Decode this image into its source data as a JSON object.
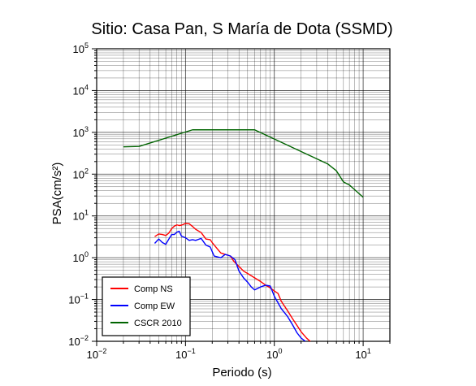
{
  "chart_data": {
    "type": "line",
    "title": "Sitio: Casa Pan, S María de Dota (SSMD)",
    "xlabel": "Periodo (s)",
    "ylabel": "PSA(cm/s²)",
    "xscale": "log",
    "yscale": "log",
    "xlim": [
      0.01,
      20
    ],
    "ylim": [
      0.01,
      100000
    ],
    "grid": true,
    "legend_position": "bottom-left",
    "x_ticks": [
      {
        "base": "10",
        "exp": "−2"
      },
      {
        "base": "10",
        "exp": "−1"
      },
      {
        "base": "10",
        "exp": "0"
      },
      {
        "base": "10",
        "exp": "1"
      }
    ],
    "y_ticks": [
      {
        "base": "10",
        "exp": "−2"
      },
      {
        "base": "10",
        "exp": "−1"
      },
      {
        "base": "10",
        "exp": "0"
      },
      {
        "base": "10",
        "exp": "1"
      },
      {
        "base": "10",
        "exp": "2"
      },
      {
        "base": "10",
        "exp": "3"
      },
      {
        "base": "10",
        "exp": "4"
      },
      {
        "base": "10",
        "exp": "5"
      }
    ],
    "series": [
      {
        "name": "Comp NS",
        "color": "#ff0000",
        "points": [
          [
            0.045,
            3.2
          ],
          [
            0.05,
            3.7
          ],
          [
            0.055,
            3.6
          ],
          [
            0.06,
            3.4
          ],
          [
            0.065,
            3.9
          ],
          [
            0.07,
            5.0
          ],
          [
            0.075,
            5.7
          ],
          [
            0.08,
            6.1
          ],
          [
            0.085,
            5.9
          ],
          [
            0.09,
            6.0
          ],
          [
            0.1,
            6.6
          ],
          [
            0.11,
            6.5
          ],
          [
            0.12,
            5.6
          ],
          [
            0.13,
            4.8
          ],
          [
            0.15,
            4.0
          ],
          [
            0.17,
            2.8
          ],
          [
            0.19,
            2.7
          ],
          [
            0.2,
            2.3
          ],
          [
            0.23,
            1.6
          ],
          [
            0.25,
            1.3
          ],
          [
            0.28,
            1.2
          ],
          [
            0.32,
            1.1
          ],
          [
            0.35,
            0.82
          ],
          [
            0.4,
            0.62
          ],
          [
            0.45,
            0.48
          ],
          [
            0.5,
            0.42
          ],
          [
            0.6,
            0.33
          ],
          [
            0.7,
            0.27
          ],
          [
            0.8,
            0.22
          ],
          [
            0.9,
            0.19
          ],
          [
            1.0,
            0.16
          ],
          [
            1.1,
            0.14
          ],
          [
            1.2,
            0.09
          ],
          [
            1.4,
            0.055
          ],
          [
            1.6,
            0.035
          ],
          [
            1.8,
            0.024
          ],
          [
            2.0,
            0.017
          ],
          [
            2.3,
            0.012
          ],
          [
            2.6,
            0.0095
          ]
        ]
      },
      {
        "name": "Comp EW",
        "color": "#0000ff",
        "points": [
          [
            0.045,
            2.2
          ],
          [
            0.05,
            2.8
          ],
          [
            0.055,
            2.3
          ],
          [
            0.06,
            2.1
          ],
          [
            0.065,
            2.8
          ],
          [
            0.07,
            3.6
          ],
          [
            0.075,
            3.6
          ],
          [
            0.08,
            4.1
          ],
          [
            0.085,
            4.3
          ],
          [
            0.09,
            3.3
          ],
          [
            0.1,
            3.0
          ],
          [
            0.11,
            2.6
          ],
          [
            0.12,
            2.7
          ],
          [
            0.13,
            2.6
          ],
          [
            0.15,
            2.9
          ],
          [
            0.17,
            2.0
          ],
          [
            0.19,
            1.8
          ],
          [
            0.21,
            1.1
          ],
          [
            0.25,
            1.0
          ],
          [
            0.28,
            1.2
          ],
          [
            0.32,
            1.1
          ],
          [
            0.36,
            0.9
          ],
          [
            0.4,
            0.48
          ],
          [
            0.45,
            0.33
          ],
          [
            0.5,
            0.26
          ],
          [
            0.55,
            0.2
          ],
          [
            0.6,
            0.17
          ],
          [
            0.7,
            0.2
          ],
          [
            0.8,
            0.22
          ],
          [
            0.9,
            0.21
          ],
          [
            1.0,
            0.12
          ],
          [
            1.2,
            0.06
          ],
          [
            1.4,
            0.04
          ],
          [
            1.6,
            0.025
          ],
          [
            1.8,
            0.016
          ],
          [
            2.0,
            0.012
          ],
          [
            2.3,
            0.0095
          ]
        ]
      },
      {
        "name": "CSCR 2010",
        "color": "#006400",
        "points": [
          [
            0.02,
            450
          ],
          [
            0.03,
            460
          ],
          [
            0.12,
            1150
          ],
          [
            0.6,
            1150
          ],
          [
            4.0,
            175
          ],
          [
            5.0,
            120
          ],
          [
            6.0,
            65
          ],
          [
            7.0,
            55
          ],
          [
            10.0,
            28
          ]
        ]
      }
    ]
  }
}
